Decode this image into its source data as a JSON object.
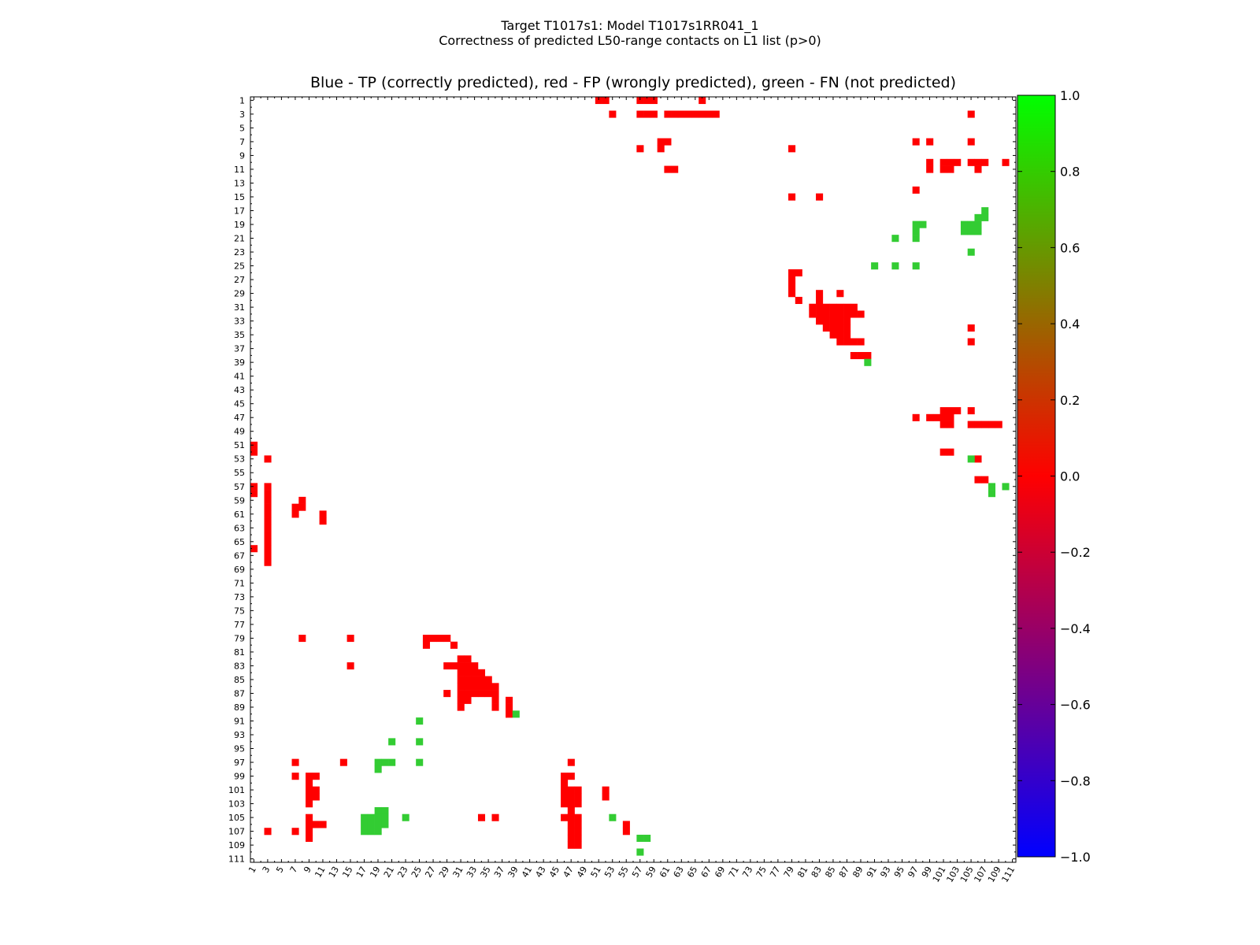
{
  "page_title": "Target T1017s1: Model T1017s1RR041_1",
  "page_subtitle": "Correctness of predicted L50-range contacts on L1 list (p>0)",
  "chart_data": {
    "type": "heatmap",
    "title": "Blue - TP (correctly predicted), red - FP (wrongly predicted), green - FN (not predicted)",
    "n": 111,
    "xlim": [
      1,
      111
    ],
    "ylim": [
      1,
      111
    ],
    "x_ticks": [
      1,
      3,
      5,
      7,
      9,
      11,
      13,
      15,
      17,
      19,
      21,
      23,
      25,
      27,
      29,
      31,
      33,
      35,
      37,
      39,
      41,
      43,
      45,
      47,
      49,
      51,
      53,
      55,
      57,
      59,
      61,
      63,
      65,
      67,
      69,
      71,
      73,
      75,
      77,
      79,
      81,
      83,
      85,
      87,
      89,
      91,
      93,
      95,
      97,
      99,
      101,
      103,
      105,
      107,
      109,
      111
    ],
    "y_ticks": [
      1,
      3,
      5,
      7,
      9,
      11,
      13,
      15,
      17,
      19,
      21,
      23,
      25,
      27,
      29,
      31,
      33,
      35,
      37,
      39,
      41,
      43,
      45,
      47,
      49,
      51,
      53,
      55,
      57,
      59,
      61,
      63,
      65,
      67,
      69,
      71,
      73,
      75,
      77,
      79,
      81,
      83,
      85,
      87,
      89,
      91,
      93,
      95,
      97,
      99,
      101,
      103,
      105,
      107,
      109,
      111
    ],
    "colorbar": {
      "min": -1.0,
      "max": 1.0,
      "ticks": [
        "1.0",
        "0.8",
        "0.6",
        "0.4",
        "0.2",
        "0.0",
        "−0.2",
        "−0.4",
        "−0.6",
        "−0.8",
        "−1.0"
      ],
      "tick_values": [
        1.0,
        0.8,
        0.6,
        0.4,
        0.2,
        0.0,
        -0.2,
        -0.4,
        -0.6,
        -0.8,
        -1.0
      ],
      "stops": [
        {
          "value": -1.0,
          "color": "#0000ff"
        },
        {
          "value": 0.0,
          "color": "#ff0000"
        },
        {
          "value": 1.0,
          "color": "#00ff00"
        }
      ]
    },
    "legend": {
      "TP": "blue",
      "FP": "red",
      "FN": "green"
    },
    "colors": {
      "FP": "#ff0000",
      "FN": "#33cc33",
      "TP": "#0000ff"
    },
    "fp_contacts": [
      [
        1,
        51
      ],
      [
        1,
        52
      ],
      [
        1,
        57
      ],
      [
        1,
        58
      ],
      [
        1,
        59
      ],
      [
        1,
        66
      ],
      [
        3,
        53
      ],
      [
        3,
        57
      ],
      [
        3,
        58
      ],
      [
        3,
        59
      ],
      [
        3,
        61
      ],
      [
        3,
        62
      ],
      [
        3,
        63
      ],
      [
        3,
        64
      ],
      [
        3,
        65
      ],
      [
        3,
        66
      ],
      [
        3,
        67
      ],
      [
        3,
        68
      ],
      [
        3,
        105
      ],
      [
        7,
        60
      ],
      [
        7,
        61
      ],
      [
        7,
        97
      ],
      [
        7,
        99
      ],
      [
        7,
        105
      ],
      [
        8,
        57
      ],
      [
        8,
        60
      ],
      [
        8,
        79
      ],
      [
        10,
        99
      ],
      [
        10,
        101
      ],
      [
        10,
        102
      ],
      [
        10,
        103
      ],
      [
        10,
        105
      ],
      [
        10,
        106
      ],
      [
        10,
        107
      ],
      [
        10,
        110
      ],
      [
        11,
        61
      ],
      [
        11,
        62
      ],
      [
        11,
        99
      ],
      [
        11,
        101
      ],
      [
        11,
        102
      ],
      [
        11,
        106
      ],
      [
        14,
        97
      ],
      [
        15,
        79
      ],
      [
        15,
        83
      ],
      [
        26,
        79
      ],
      [
        26,
        80
      ],
      [
        27,
        79
      ],
      [
        28,
        79
      ],
      [
        29,
        79
      ],
      [
        29,
        83
      ],
      [
        29,
        86
      ],
      [
        30,
        80
      ],
      [
        30,
        83
      ],
      [
        31,
        82
      ],
      [
        31,
        83
      ],
      [
        31,
        84
      ],
      [
        31,
        85
      ],
      [
        31,
        86
      ],
      [
        31,
        87
      ],
      [
        31,
        88
      ],
      [
        32,
        82
      ],
      [
        32,
        83
      ],
      [
        32,
        84
      ],
      [
        32,
        85
      ],
      [
        32,
        86
      ],
      [
        32,
        87
      ],
      [
        32,
        88
      ],
      [
        32,
        89
      ],
      [
        33,
        83
      ],
      [
        33,
        84
      ],
      [
        33,
        85
      ],
      [
        33,
        86
      ],
      [
        33,
        87
      ],
      [
        34,
        84
      ],
      [
        34,
        85
      ],
      [
        34,
        86
      ],
      [
        34,
        87
      ],
      [
        34,
        105
      ],
      [
        35,
        85
      ],
      [
        35,
        86
      ],
      [
        35,
        87
      ],
      [
        36,
        86
      ],
      [
        36,
        87
      ],
      [
        36,
        88
      ],
      [
        36,
        89
      ],
      [
        36,
        105
      ],
      [
        38,
        88
      ],
      [
        38,
        89
      ],
      [
        38,
        90
      ],
      [
        46,
        101
      ],
      [
        46,
        102
      ],
      [
        46,
        103
      ],
      [
        46,
        105
      ],
      [
        47,
        97
      ],
      [
        47,
        99
      ],
      [
        47,
        100
      ],
      [
        47,
        101
      ],
      [
        47,
        102
      ],
      [
        48,
        101
      ],
      [
        48,
        102
      ],
      [
        48,
        105
      ],
      [
        48,
        106
      ],
      [
        48,
        107
      ],
      [
        48,
        108
      ],
      [
        48,
        109
      ],
      [
        52,
        101
      ],
      [
        52,
        102
      ],
      [
        53,
        106
      ],
      [
        56,
        106
      ],
      [
        56,
        107
      ],
      [
        51,
        1
      ],
      [
        52,
        1
      ],
      [
        57,
        1
      ],
      [
        58,
        1
      ],
      [
        66,
        1
      ],
      [
        53,
        3
      ],
      [
        57,
        3
      ],
      [
        58,
        3
      ],
      [
        59,
        3
      ],
      [
        60,
        3
      ],
      [
        61,
        3
      ],
      [
        62,
        3
      ],
      [
        63,
        3
      ],
      [
        64,
        3
      ],
      [
        65,
        3
      ],
      [
        66,
        3
      ],
      [
        67,
        3
      ],
      [
        68,
        3
      ],
      [
        107,
        3
      ],
      [
        60,
        7
      ],
      [
        61,
        7
      ],
      [
        97,
        7
      ],
      [
        99,
        7
      ],
      [
        107,
        7
      ],
      [
        59,
        8
      ],
      [
        60,
        8
      ],
      [
        79,
        8
      ],
      [
        99,
        9
      ],
      [
        100,
        9
      ],
      [
        101,
        9
      ],
      [
        102,
        9
      ],
      [
        103,
        9
      ],
      [
        105,
        9
      ],
      [
        106,
        9
      ],
      [
        107,
        9
      ],
      [
        108,
        9
      ],
      [
        99,
        10
      ],
      [
        101,
        10
      ],
      [
        102,
        10
      ],
      [
        106,
        10
      ],
      [
        61,
        11
      ],
      [
        62,
        11
      ],
      [
        106,
        11
      ],
      [
        97,
        14
      ],
      [
        79,
        15
      ],
      [
        83,
        15
      ],
      [
        79,
        26
      ],
      [
        80,
        26
      ],
      [
        79,
        27
      ],
      [
        79,
        28
      ],
      [
        79,
        29
      ],
      [
        83,
        29
      ],
      [
        87,
        29
      ],
      [
        80,
        30
      ],
      [
        83,
        30
      ],
      [
        82,
        31
      ],
      [
        83,
        31
      ],
      [
        84,
        31
      ],
      [
        85,
        31
      ],
      [
        86,
        31
      ],
      [
        87,
        31
      ],
      [
        88,
        31
      ],
      [
        89,
        31
      ],
      [
        82,
        32
      ],
      [
        83,
        32
      ],
      [
        84,
        32
      ],
      [
        85,
        32
      ],
      [
        86,
        32
      ],
      [
        87,
        32
      ],
      [
        88,
        32
      ],
      [
        83,
        33
      ],
      [
        84,
        33
      ],
      [
        85,
        33
      ],
      [
        86,
        33
      ],
      [
        87,
        33
      ],
      [
        84,
        34
      ],
      [
        85,
        34
      ],
      [
        86,
        34
      ],
      [
        87,
        34
      ],
      [
        105,
        34
      ],
      [
        85,
        35
      ],
      [
        86,
        35
      ],
      [
        87,
        35
      ],
      [
        86,
        36
      ],
      [
        87,
        36
      ],
      [
        88,
        36
      ],
      [
        89,
        36
      ],
      [
        105,
        36
      ],
      [
        88,
        38
      ],
      [
        89,
        38
      ],
      [
        90,
        38
      ],
      [
        97,
        47
      ],
      [
        99,
        46
      ],
      [
        100,
        46
      ],
      [
        101,
        46
      ],
      [
        102,
        46
      ],
      [
        103,
        46
      ],
      [
        105,
        46
      ],
      [
        99,
        47
      ],
      [
        101,
        47
      ],
      [
        102,
        47
      ],
      [
        103,
        47
      ],
      [
        104,
        47
      ],
      [
        105,
        47
      ],
      [
        106,
        47
      ],
      [
        107,
        47
      ],
      [
        108,
        47
      ],
      [
        109,
        47
      ],
      [
        101,
        48
      ],
      [
        102,
        48
      ],
      [
        103,
        48
      ],
      [
        105,
        48
      ],
      [
        106,
        48
      ],
      [
        107,
        48
      ],
      [
        108,
        48
      ],
      [
        109,
        48
      ],
      [
        101,
        52
      ],
      [
        102,
        52
      ],
      [
        106,
        55
      ],
      [
        107,
        55
      ]
    ],
    "fn_contacts": [
      [
        17,
        107
      ],
      [
        18,
        106
      ],
      [
        18,
        107
      ],
      [
        19,
        97
      ],
      [
        19,
        98
      ],
      [
        19,
        104
      ],
      [
        19,
        105
      ],
      [
        19,
        106
      ],
      [
        20,
        97
      ],
      [
        20,
        104
      ],
      [
        20,
        105
      ],
      [
        20,
        106
      ],
      [
        21,
        94
      ],
      [
        21,
        97
      ],
      [
        23,
        105
      ],
      [
        25,
        91
      ],
      [
        25,
        94
      ],
      [
        25,
        97
      ],
      [
        39,
        90
      ],
      [
        53,
        105
      ],
      [
        57,
        108
      ],
      [
        57,
        110
      ],
      [
        58,
        108
      ],
      [
        106,
        17
      ],
      [
        107,
        17
      ],
      [
        106,
        18
      ],
      [
        107,
        18
      ],
      [
        97,
        19
      ],
      [
        98,
        19
      ],
      [
        97,
        20
      ],
      [
        104,
        19
      ],
      [
        105,
        19
      ],
      [
        104,
        20
      ],
      [
        94,
        21
      ],
      [
        97,
        21
      ],
      [
        105,
        23
      ],
      [
        91,
        25
      ],
      [
        94,
        25
      ],
      [
        97,
        25
      ],
      [
        90,
        39
      ],
      [
        105,
        53
      ],
      [
        108,
        57
      ],
      [
        108,
        58
      ],
      [
        110,
        57
      ],
      [
        105,
        17
      ],
      [
        105,
        18
      ],
      [
        105,
        19
      ],
      [
        106,
        19
      ],
      [
        107,
        19
      ],
      [
        105,
        20
      ],
      [
        106,
        20
      ]
    ]
  }
}
